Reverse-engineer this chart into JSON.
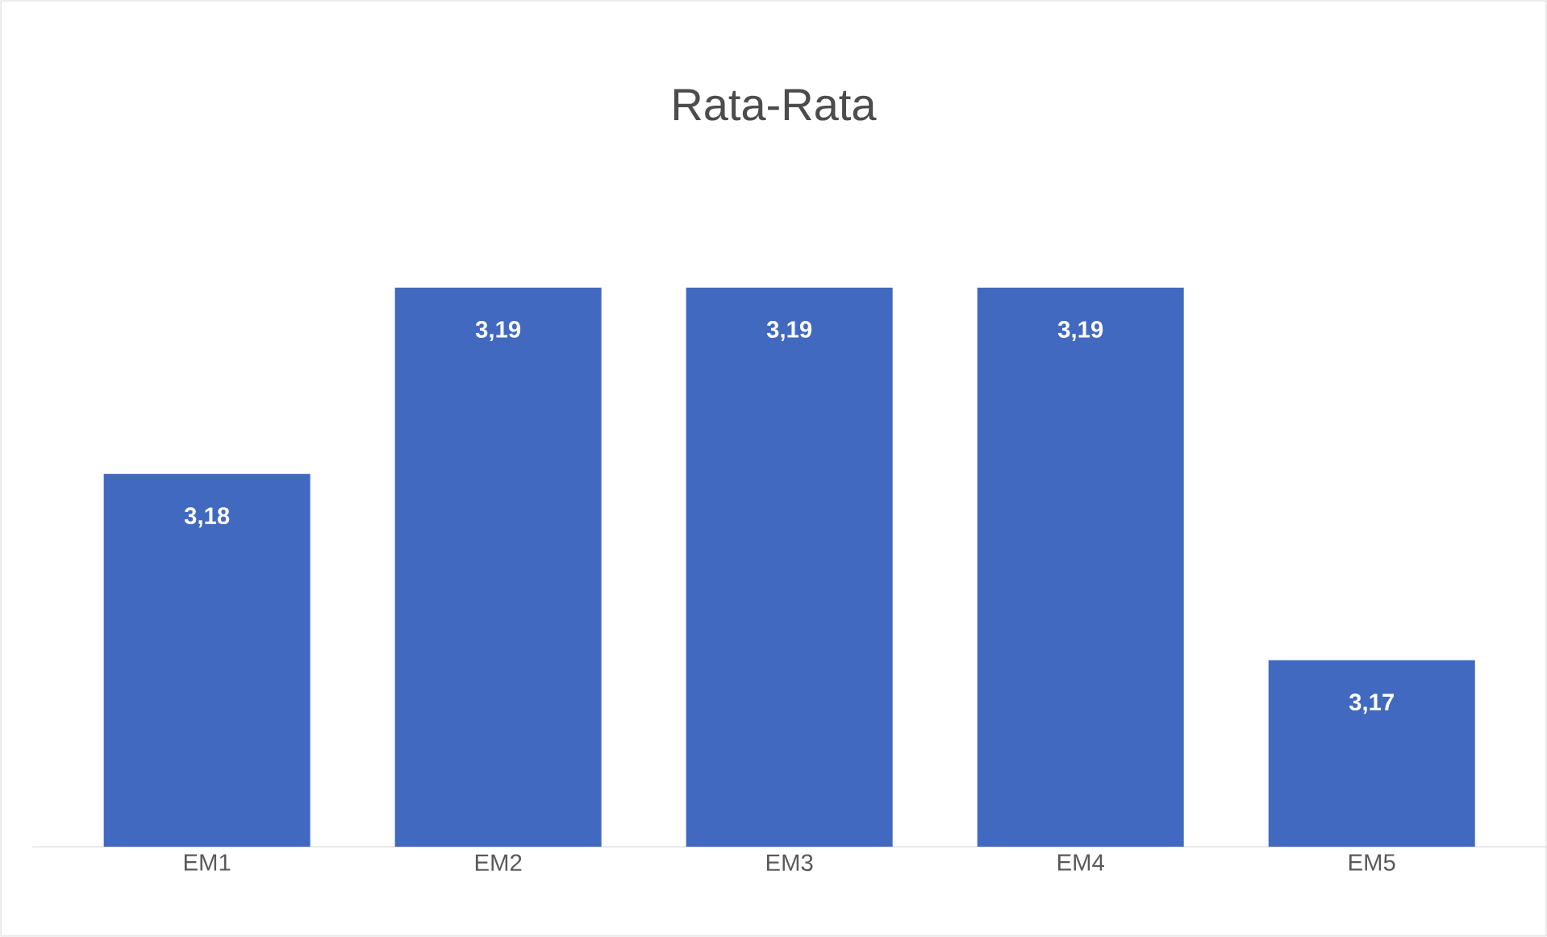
{
  "chart_data": {
    "type": "bar",
    "title": "Rata-Rata",
    "categories": [
      "EM1",
      "EM2",
      "EM3",
      "EM4",
      "EM5"
    ],
    "values": [
      3.18,
      3.19,
      3.19,
      3.19,
      3.17
    ],
    "value_labels": [
      "3,18",
      "3,19",
      "3,19",
      "3,19",
      "3,17"
    ],
    "color": "#4169bf",
    "ylim": [
      3.16,
      3.19
    ],
    "tick_labels": "x"
  }
}
